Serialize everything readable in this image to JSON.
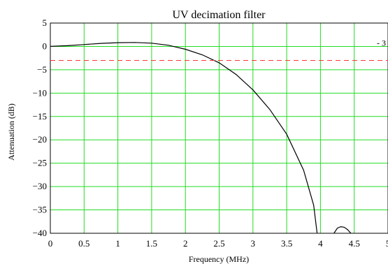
{
  "chart_data": {
    "type": "line",
    "title": "UV decimation filter",
    "xlabel": "Frequency (MHz)",
    "ylabel": "Attenuation (dB)",
    "xlim": [
      0,
      5
    ],
    "ylim": [
      -40,
      5
    ],
    "x_ticks": [
      0,
      0.5,
      1,
      1.5,
      2,
      2.5,
      3,
      3.5,
      4,
      4.5,
      5
    ],
    "x_tick_labels": [
      "0",
      "0.5",
      "1",
      "1.5",
      "2",
      "2.5",
      "3",
      "3.5",
      "4",
      "4.5",
      "5"
    ],
    "y_ticks": [
      5,
      0,
      -5,
      -10,
      -15,
      -20,
      -25,
      -30,
      -35,
      -40
    ],
    "y_tick_labels": [
      "5",
      "0",
      "−5",
      "−10",
      "−15",
      "−20",
      "−25",
      "−30",
      "−35",
      "−40"
    ],
    "grid": true,
    "grid_color": "#22dd22",
    "reference_line": {
      "y": -3,
      "label": "- 3",
      "color": "#ff3333",
      "style": "dashed"
    },
    "series": [
      {
        "color": "#000000",
        "x": [
          0,
          0.25,
          0.5,
          0.75,
          1.0,
          1.25,
          1.5,
          1.75,
          2.0,
          2.25,
          2.5,
          2.75,
          3.0,
          3.25,
          3.5,
          3.75,
          3.9,
          3.95
        ],
        "y": [
          0,
          0.15,
          0.4,
          0.65,
          0.8,
          0.85,
          0.7,
          0.25,
          -0.6,
          -1.8,
          -3.5,
          -6.0,
          -9.3,
          -13.5,
          -18.8,
          -26.5,
          -34.0,
          -40.0
        ]
      },
      {
        "color": "#000000",
        "x": [
          4.2,
          4.25,
          4.3,
          4.35,
          4.4,
          4.45
        ],
        "y": [
          -40.0,
          -38.9,
          -38.6,
          -38.7,
          -39.2,
          -40.0
        ]
      }
    ]
  }
}
